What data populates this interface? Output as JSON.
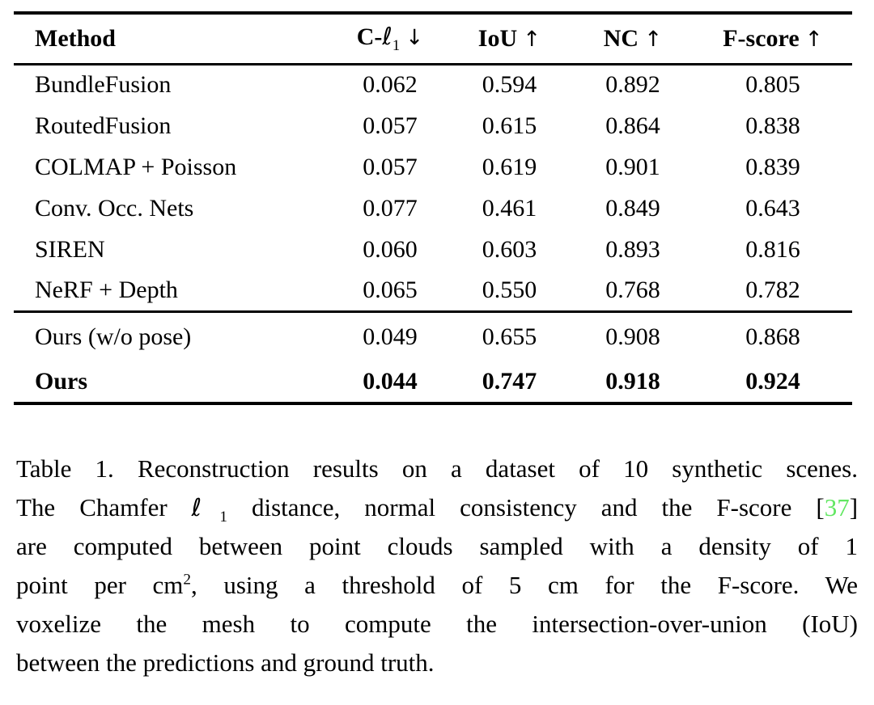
{
  "table": {
    "headers": {
      "method": "Method",
      "chamfer": {
        "prefix": "C-",
        "ell": "ℓ",
        "sub": "1",
        "arrow": "↓"
      },
      "iou": {
        "label": "IoU",
        "arrow": "↑"
      },
      "nc": {
        "label": "NC",
        "arrow": "↑"
      },
      "fscore": {
        "label": "F-score",
        "arrow": "↑"
      }
    },
    "rows": [
      {
        "method": "BundleFusion",
        "values": [
          "0.062",
          "0.594",
          "0.892",
          "0.805"
        ],
        "bold": false,
        "rule_above": false
      },
      {
        "method": "RoutedFusion",
        "values": [
          "0.057",
          "0.615",
          "0.864",
          "0.838"
        ],
        "bold": false,
        "rule_above": false
      },
      {
        "method": "COLMAP + Poisson",
        "values": [
          "0.057",
          "0.619",
          "0.901",
          "0.839"
        ],
        "bold": false,
        "rule_above": false
      },
      {
        "method": "Conv. Occ. Nets",
        "values": [
          "0.077",
          "0.461",
          "0.849",
          "0.643"
        ],
        "bold": false,
        "rule_above": false
      },
      {
        "method": "SIREN",
        "values": [
          "0.060",
          "0.603",
          "0.893",
          "0.816"
        ],
        "bold": false,
        "rule_above": false
      },
      {
        "method": "NeRF + Depth",
        "values": [
          "0.065",
          "0.550",
          "0.768",
          "0.782"
        ],
        "bold": false,
        "rule_above": false
      },
      {
        "method": "Ours (w/o pose)",
        "values": [
          "0.049",
          "0.655",
          "0.908",
          "0.868"
        ],
        "bold": false,
        "rule_above": true
      },
      {
        "method": "Ours",
        "values": [
          "0.044",
          "0.747",
          "0.918",
          "0.924"
        ],
        "bold": true,
        "rule_above": false
      }
    ]
  },
  "caption": {
    "lines": [
      [
        {
          "t": "Table 1. Reconstruction results on a dataset of 10 synthetic scenes.",
          "s": "n"
        }
      ],
      [
        {
          "t": "The Chamfer ",
          "s": "n"
        },
        {
          "t": "ℓ",
          "s": "ell"
        },
        {
          "t": "1",
          "s": "sub"
        },
        {
          "t": " distance, normal consistency and the F-score [",
          "s": "n"
        },
        {
          "t": "37",
          "s": "cite"
        },
        {
          "t": "]",
          "s": "n"
        }
      ],
      [
        {
          "t": "are computed between point clouds sampled with a density of 1",
          "s": "n"
        }
      ],
      [
        {
          "t": "point per cm",
          "s": "n"
        },
        {
          "t": "2",
          "s": "sup"
        },
        {
          "t": ", using a threshold of 5 cm for the F-score. We",
          "s": "n"
        }
      ],
      [
        {
          "t": "voxelize the mesh to compute the intersection-over-union (IoU)",
          "s": "n"
        }
      ],
      [
        {
          "t": "between the predictions and ground truth.",
          "s": "n"
        }
      ]
    ]
  },
  "colors": {
    "citation_green": "#62e762",
    "text": "#000000",
    "rule": "#000000",
    "background": "#ffffff"
  }
}
